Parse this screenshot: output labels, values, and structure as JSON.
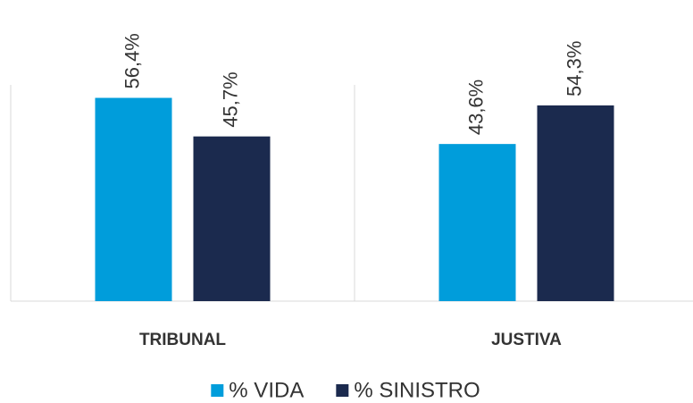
{
  "chart_data": {
    "type": "bar",
    "categories": [
      "TRIBUNAL",
      "JUSTIVA"
    ],
    "series": [
      {
        "name": "% VIDA",
        "color": "#009ddb",
        "values": [
          56.4,
          43.6
        ],
        "value_labels": [
          "56,4%",
          "43,6%"
        ]
      },
      {
        "name": "% SINISTRO",
        "color": "#1b2a4e",
        "values": [
          45.7,
          54.3
        ],
        "value_labels": [
          "45,7%",
          "54,3%"
        ]
      }
    ],
    "ylim": [
      0,
      60
    ],
    "legend": "bottom"
  }
}
